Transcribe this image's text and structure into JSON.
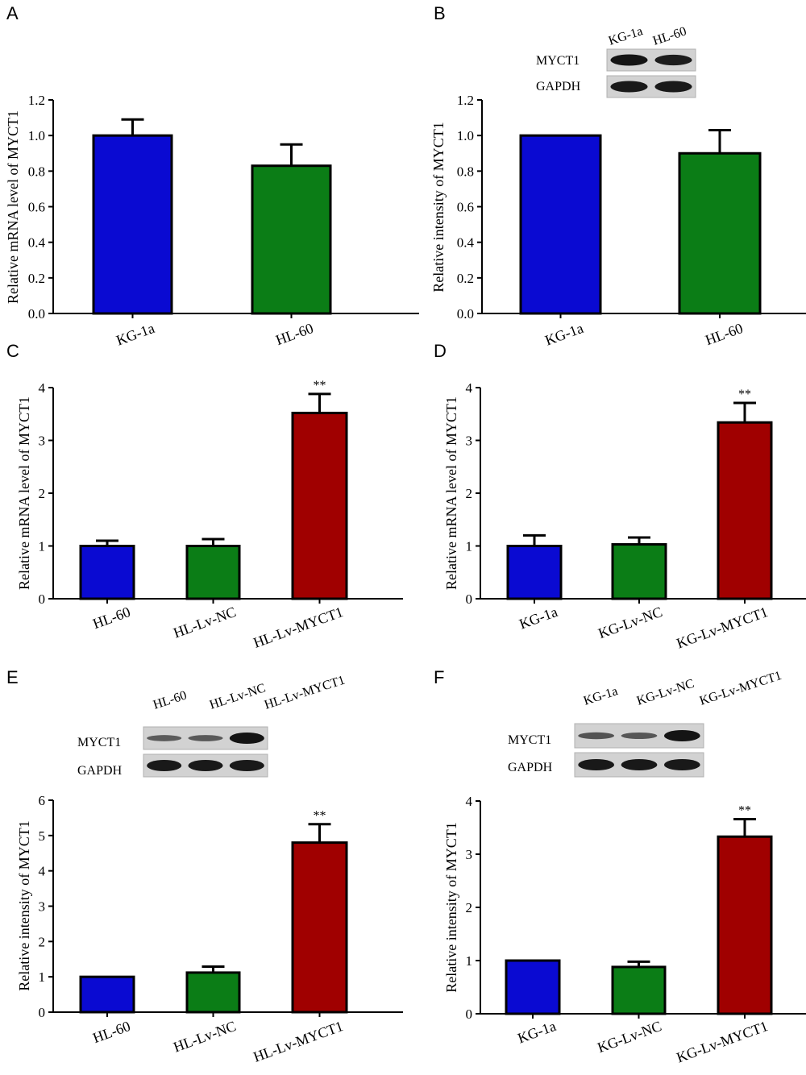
{
  "colors": {
    "blue": "#0a0ad2",
    "green": "#0b7d16",
    "red": "#a00000",
    "axis": "#000000"
  },
  "chart_data": [
    {
      "panel": "A",
      "type": "bar",
      "ylabel": "Relative mRNA level of MYCT1",
      "categories": [
        "KG-1a",
        "HL-60"
      ],
      "values": [
        1.0,
        0.83
      ],
      "errors": [
        0.09,
        0.12
      ],
      "colors": [
        "blue",
        "green"
      ],
      "significance": [
        "",
        ""
      ],
      "ylim": [
        0,
        1.2
      ],
      "yticks": [
        "0.0",
        "0.2",
        "0.4",
        "0.6",
        "0.8",
        "1.0",
        "1.2"
      ]
    },
    {
      "panel": "B",
      "type": "bar",
      "ylabel": "Relative intensity of MYCT1",
      "categories": [
        "KG-1a",
        "HL-60"
      ],
      "values": [
        1.0,
        0.9
      ],
      "errors": [
        0.0,
        0.13
      ],
      "colors": [
        "blue",
        "green"
      ],
      "significance": [
        "",
        ""
      ],
      "ylim": [
        0,
        1.2
      ],
      "yticks": [
        "0.0",
        "0.2",
        "0.4",
        "0.6",
        "0.8",
        "1.0",
        "1.2"
      ],
      "blot": {
        "lanes": [
          "KG-1a",
          "HL-60"
        ],
        "rows": [
          "MYCT1",
          "GAPDH"
        ]
      }
    },
    {
      "panel": "C",
      "type": "bar",
      "ylabel": "Relative mRNA level of MYCT1",
      "categories": [
        "HL-60",
        "HL-Lv-NC",
        "HL-Lv-MYCT1"
      ],
      "values": [
        1.0,
        1.0,
        3.52
      ],
      "errors": [
        0.1,
        0.13,
        0.36
      ],
      "colors": [
        "blue",
        "green",
        "red"
      ],
      "significance": [
        "",
        "",
        "**"
      ],
      "ylim": [
        0,
        4
      ],
      "yticks": [
        "0",
        "1",
        "2",
        "3",
        "4"
      ]
    },
    {
      "panel": "D",
      "type": "bar",
      "ylabel": "Relative mRNA level of MYCT1",
      "categories": [
        "KG-1a",
        "KG-Lv-NC",
        "KG-Lv-MYCT1"
      ],
      "values": [
        1.0,
        1.03,
        3.34
      ],
      "errors": [
        0.2,
        0.13,
        0.37
      ],
      "colors": [
        "blue",
        "green",
        "red"
      ],
      "significance": [
        "",
        "",
        "**"
      ],
      "ylim": [
        0,
        4
      ],
      "yticks": [
        "0",
        "1",
        "2",
        "3",
        "4"
      ]
    },
    {
      "panel": "E",
      "type": "bar",
      "ylabel": "Relative intensity of MYCT1",
      "categories": [
        "HL-60",
        "HL-Lv-NC",
        "HL-Lv-MYCT1"
      ],
      "values": [
        1.0,
        1.12,
        4.8
      ],
      "errors": [
        0.0,
        0.17,
        0.52
      ],
      "colors": [
        "blue",
        "green",
        "red"
      ],
      "significance": [
        "",
        "",
        "**"
      ],
      "ylim": [
        0,
        6
      ],
      "yticks": [
        "0",
        "1",
        "2",
        "3",
        "4",
        "5",
        "6"
      ],
      "blot": {
        "lanes": [
          "HL-60",
          "HL-Lv-NC",
          "HL-Lv-MYCT1"
        ],
        "rows": [
          "MYCT1",
          "GAPDH"
        ]
      }
    },
    {
      "panel": "F",
      "type": "bar",
      "ylabel": "Relative intensity of MYCT1",
      "categories": [
        "KG-1a",
        "KG-Lv-NC",
        "KG-Lv-MYCT1"
      ],
      "values": [
        1.0,
        0.88,
        3.33
      ],
      "errors": [
        0.0,
        0.1,
        0.33
      ],
      "colors": [
        "blue",
        "green",
        "red"
      ],
      "significance": [
        "",
        "",
        "**"
      ],
      "ylim": [
        0,
        4
      ],
      "yticks": [
        "0",
        "1",
        "2",
        "3",
        "4"
      ],
      "blot": {
        "lanes": [
          "KG-1a",
          "KG-Lv-NC",
          "KG-Lv-MYCT1"
        ],
        "rows": [
          "MYCT1",
          "GAPDH"
        ]
      }
    }
  ]
}
